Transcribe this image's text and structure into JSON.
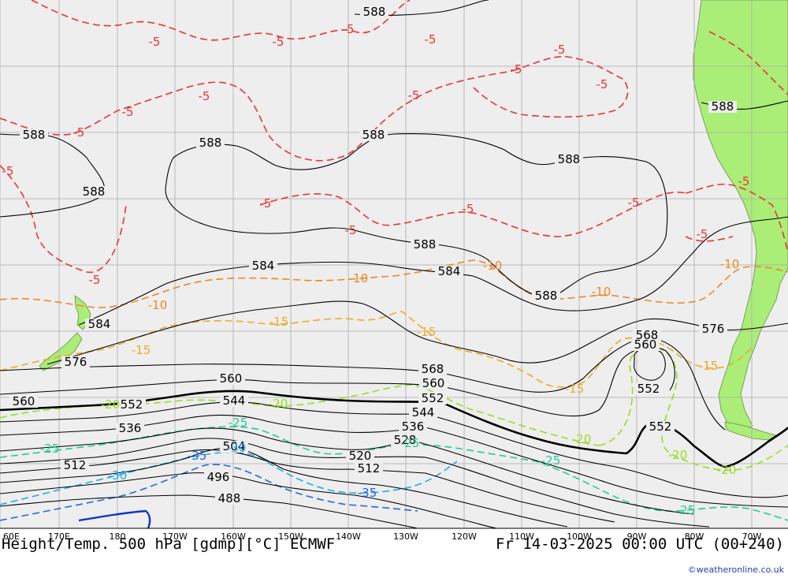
{
  "map": {
    "title_left": "Height/Temp. 500 hPa [gdmp][°C] ECMWF",
    "title_right": "Fr 14-03-2025 00:00 UTC (00+240)",
    "credit": "©weatheronline.co.uk",
    "longitude_ticks": [
      "60E",
      "170E",
      "180",
      "170W",
      "160W",
      "150W",
      "140W",
      "130W",
      "120W",
      "110W",
      "100W",
      "90W",
      "80W",
      "70W"
    ],
    "colors": {
      "ocean": "#eeeeee",
      "land": "#aaee77",
      "grid": "#aaaaaa",
      "height_contour": "#000000",
      "temp_minus5": "#ee3333",
      "temp_minus10": "#ee8822",
      "temp_minus15": "#eeaa22",
      "temp_minus20": "#99dd22",
      "temp_minus25": "#22cc99",
      "temp_minus30": "#22aaee",
      "temp_minus35": "#2266ee",
      "temp_minus40": "#1133cc"
    },
    "height_labels": [
      {
        "text": "588",
        "key": "h588a"
      },
      {
        "text": "588",
        "key": "h588b"
      },
      {
        "text": "588",
        "key": "h588c"
      },
      {
        "text": "588",
        "key": "h588d"
      },
      {
        "text": "588",
        "key": "h588e"
      },
      {
        "text": "588",
        "key": "h588f"
      },
      {
        "text": "588",
        "key": "h588g"
      },
      {
        "text": "588",
        "key": "h588h"
      },
      {
        "text": "588",
        "key": "h588i"
      },
      {
        "text": "584",
        "key": "h584a"
      },
      {
        "text": "584",
        "key": "h584b"
      },
      {
        "text": "584",
        "key": "h584c"
      },
      {
        "text": "576",
        "key": "h576a"
      },
      {
        "text": "576",
        "key": "h576b"
      },
      {
        "text": "568",
        "key": "h568a"
      },
      {
        "text": "568",
        "key": "h568b"
      },
      {
        "text": "560",
        "key": "h560a"
      },
      {
        "text": "560",
        "key": "h560b"
      },
      {
        "text": "560",
        "key": "h560c"
      },
      {
        "text": "560",
        "key": "h560d"
      },
      {
        "text": "552",
        "key": "h552a"
      },
      {
        "text": "552",
        "key": "h552b"
      },
      {
        "text": "552",
        "key": "h552c"
      },
      {
        "text": "552",
        "key": "h552d"
      },
      {
        "text": "544",
        "key": "h544a"
      },
      {
        "text": "544",
        "key": "h544b"
      },
      {
        "text": "536",
        "key": "h536a"
      },
      {
        "text": "536",
        "key": "h536b"
      },
      {
        "text": "528",
        "key": "h528"
      },
      {
        "text": "520",
        "key": "h520"
      },
      {
        "text": "512",
        "key": "h512a"
      },
      {
        "text": "512",
        "key": "h512b"
      },
      {
        "text": "504",
        "key": "h504"
      },
      {
        "text": "496",
        "key": "h496"
      },
      {
        "text": "488",
        "key": "h488"
      }
    ],
    "temp_labels": [
      {
        "text": "-5"
      },
      {
        "text": "-5"
      },
      {
        "text": "-5"
      },
      {
        "text": "-5"
      },
      {
        "text": "-5"
      },
      {
        "text": "-5"
      },
      {
        "text": "-5"
      },
      {
        "text": "-5"
      },
      {
        "text": "-5"
      },
      {
        "text": "-5"
      },
      {
        "text": "-5"
      },
      {
        "text": "-5"
      },
      {
        "text": "-5"
      },
      {
        "text": "-5"
      },
      {
        "text": "-5"
      },
      {
        "text": "-5"
      },
      {
        "text": "-5"
      },
      {
        "text": "-5"
      },
      {
        "text": "-5"
      },
      {
        "text": "-10"
      },
      {
        "text": "-10"
      },
      {
        "text": "-10"
      },
      {
        "text": "-10"
      },
      {
        "text": "-10"
      },
      {
        "text": "-15"
      },
      {
        "text": "-15"
      },
      {
        "text": "-15"
      },
      {
        "text": "-15"
      },
      {
        "text": "-15"
      },
      {
        "text": "-20"
      },
      {
        "text": "-20"
      },
      {
        "text": "-20"
      },
      {
        "text": "-20"
      },
      {
        "text": "-20"
      },
      {
        "text": "-25"
      },
      {
        "text": "-25"
      },
      {
        "text": "-25"
      },
      {
        "text": "-25"
      },
      {
        "text": "-25"
      },
      {
        "text": "-30"
      },
      {
        "text": "-30"
      },
      {
        "text": "-35"
      },
      {
        "text": "-35"
      }
    ]
  }
}
